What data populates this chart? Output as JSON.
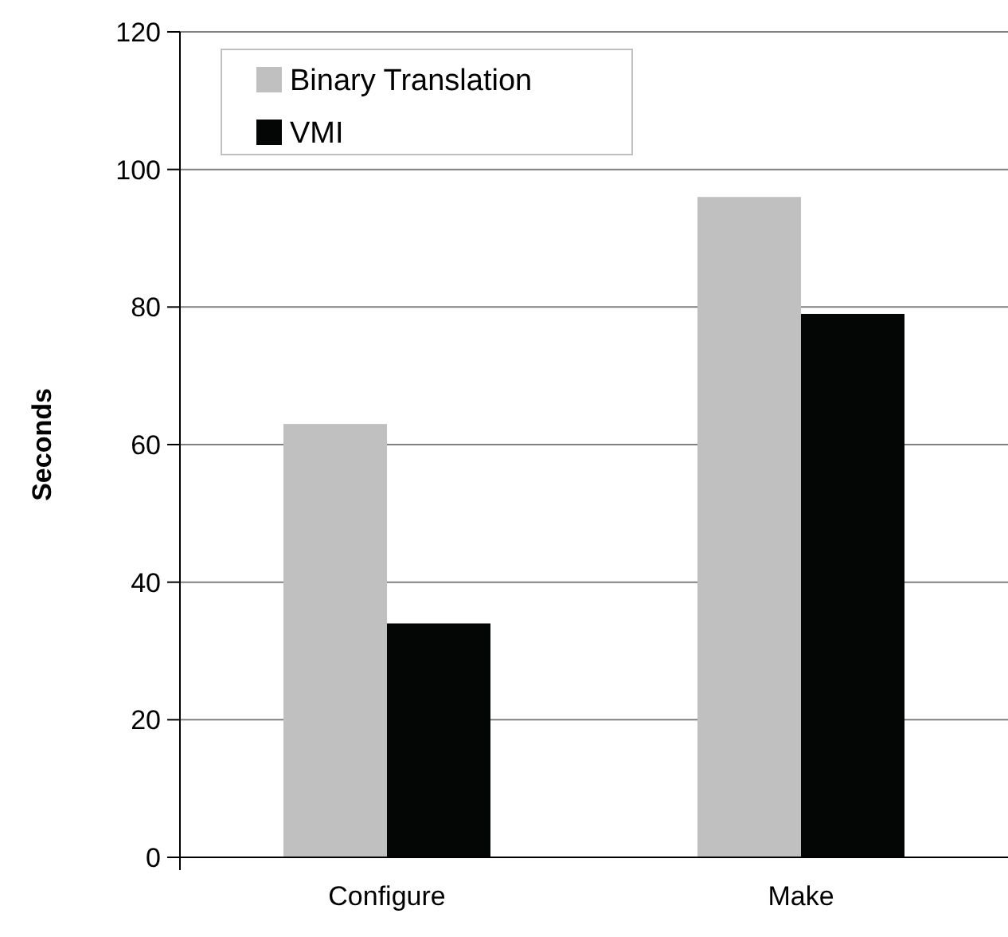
{
  "chart_data": {
    "type": "bar",
    "ylabel": "Seconds",
    "categories": [
      "Configure",
      "Make"
    ],
    "series": [
      {
        "name": "Binary Translation",
        "color": "#c0c0c0",
        "values": [
          63,
          96
        ]
      },
      {
        "name": "VMI",
        "color": "#040605",
        "values": [
          34,
          79
        ]
      }
    ],
    "ylim": [
      0,
      120
    ],
    "yticks": [
      0,
      20,
      40,
      60,
      80,
      100,
      120
    ],
    "grid": "y",
    "legend": "top left"
  }
}
